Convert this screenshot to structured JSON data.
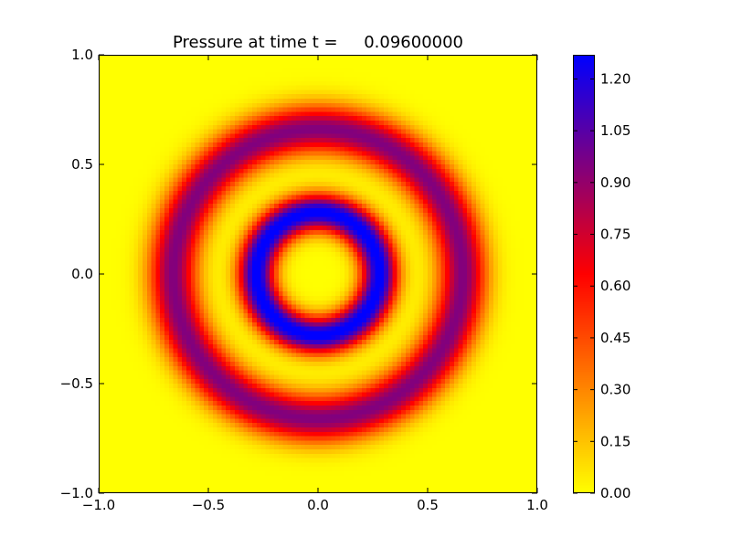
{
  "chart_data": {
    "type": "heatmap",
    "title": "Pressure at time t =     0.09600000",
    "xlabel": "",
    "ylabel": "",
    "xlim": [
      -1.0,
      1.0
    ],
    "ylim": [
      -1.0,
      1.0
    ],
    "x_ticks": [
      -1.0,
      -0.5,
      0.0,
      0.5,
      1.0
    ],
    "x_tick_labels": [
      "−1.0",
      "−0.5",
      "0.0",
      "0.5",
      "1.0"
    ],
    "y_ticks": [
      1.0,
      0.5,
      0.0,
      -0.5,
      -1.0
    ],
    "y_tick_labels": [
      "1.0",
      "0.5",
      "0.0",
      "−0.5",
      "−1.0"
    ],
    "grid_resolution": 100,
    "field": {
      "description": "radially symmetric pressure rings: p(r) = sum of Gaussian rings",
      "rings": [
        {
          "radius": 0.28,
          "amplitude": 1.3,
          "width": 0.085
        },
        {
          "radius": 0.66,
          "amplitude": 0.95,
          "width": 0.11
        }
      ]
    },
    "colorbar": {
      "range": [
        0.0,
        1.27
      ],
      "ticks": [
        0.0,
        0.15,
        0.3,
        0.45,
        0.6,
        0.75,
        0.9,
        1.05,
        1.2
      ],
      "tick_labels": [
        "0.00",
        "0.15",
        "0.30",
        "0.45",
        "0.60",
        "0.75",
        "0.90",
        "1.05",
        "1.20"
      ],
      "colormap_stops": [
        {
          "v": 0.0,
          "color": "#ffff00"
        },
        {
          "v": 0.5,
          "color": "#ff0000"
        },
        {
          "v": 1.0,
          "color": "#0000ff"
        }
      ]
    },
    "legend": "none",
    "grid": false
  }
}
